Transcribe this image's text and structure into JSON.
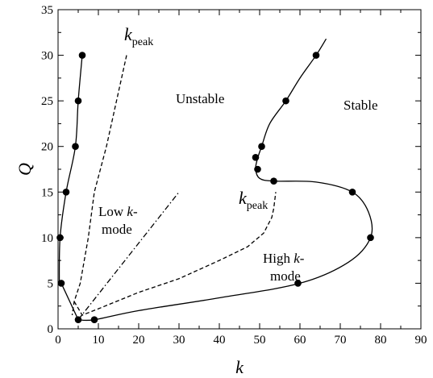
{
  "chart_data": {
    "type": "line",
    "xlabel": "k",
    "ylabel": "Q",
    "xlim": [
      0,
      90
    ],
    "ylim": [
      0,
      35
    ],
    "x_ticks": [
      "0",
      "10",
      "20",
      "30",
      "40",
      "50",
      "60",
      "70",
      "80",
      "90"
    ],
    "y_ticks": [
      "0",
      "5",
      "10",
      "15",
      "20",
      "25",
      "30",
      "35"
    ],
    "grid": false,
    "series": [
      {
        "style": "solid-markers",
        "smooth": true,
        "x": [
          6,
          5,
          4.3,
          2,
          0.5,
          0.3
        ],
        "y": [
          30,
          25,
          20,
          15,
          10,
          5
        ],
        "markers": [
          [
            6,
            30
          ],
          [
            5,
            25
          ],
          [
            4.3,
            20
          ],
          [
            2,
            15
          ],
          [
            0.5,
            10
          ],
          [
            0.8,
            5
          ],
          [
            5,
            1
          ]
        ]
      },
      {
        "style": "solid",
        "x": [
          0.8,
          5
        ],
        "y": [
          5,
          1
        ]
      },
      {
        "style": "solid-markers",
        "smooth": true,
        "x": [
          5,
          9,
          20,
          40,
          60,
          72,
          77.5,
          77,
          73,
          64,
          53.5,
          50,
          49,
          49.5,
          50.5,
          52.5,
          56.5,
          60,
          64,
          66.5
        ],
        "y": [
          1,
          1,
          2,
          3.4,
          5,
          7.3,
          10,
          12.8,
          15,
          16.1,
          16.2,
          16.5,
          17.5,
          18.7,
          20,
          22.5,
          25,
          27.5,
          30,
          31.8
        ],
        "markers": [
          [
            9,
            1
          ],
          [
            59.5,
            5
          ],
          [
            77.5,
            10
          ],
          [
            73,
            15
          ],
          [
            53.5,
            16.2
          ],
          [
            49.5,
            17.5
          ],
          [
            49,
            18.8
          ],
          [
            50.5,
            20
          ],
          [
            56.5,
            25
          ],
          [
            64,
            30
          ]
        ]
      },
      {
        "style": "dashed",
        "x": [
          17,
          12,
          9,
          7.5,
          5.5,
          4,
          3.5
        ],
        "y": [
          30,
          20,
          15,
          10,
          5,
          3,
          1.5
        ]
      },
      {
        "style": "dashed",
        "x": [
          4,
          6,
          10,
          20,
          30,
          40,
          47,
          51,
          53,
          53.5,
          54
        ],
        "y": [
          3,
          1.5,
          2.2,
          4,
          5.5,
          7.5,
          9,
          10.5,
          12.2,
          13.2,
          15
        ]
      },
      {
        "style": "dash-dot",
        "x": [
          5,
          30
        ],
        "y": [
          1,
          15
        ]
      }
    ],
    "annotations": {
      "unstable": "Unstable",
      "stable": "Stable",
      "kpeak_main": "k",
      "kpeak_sub": "peak",
      "low_line1_plain": "Low ",
      "low_line1_italic": "k",
      "low_line1_end": "-",
      "low_line2": "mode",
      "high_line1_plain": "High ",
      "high_line1_italic": "k",
      "high_line1_end": "-",
      "high_line2": "mode"
    }
  }
}
